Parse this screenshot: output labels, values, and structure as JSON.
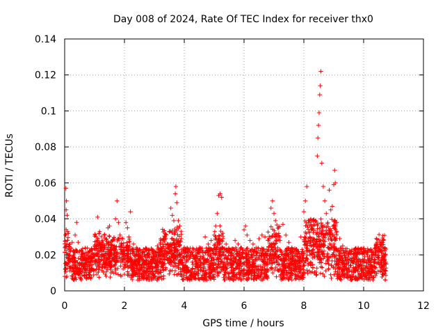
{
  "chart_data": {
    "type": "scatter",
    "title": "Day 008 of 2024, Rate Of TEC Index for receiver thx0",
    "xlabel": "GPS time / hours",
    "ylabel": "ROTI / TECUs",
    "xlim": [
      0,
      12
    ],
    "ylim": [
      0,
      0.14
    ],
    "x_ticks": [
      0,
      2,
      4,
      6,
      8,
      10,
      12
    ],
    "x_tick_labels": [
      "0",
      "2",
      "4",
      "6",
      "8",
      "10",
      "12"
    ],
    "y_ticks": [
      0,
      0.02,
      0.04,
      0.06,
      0.08,
      0.1,
      0.12,
      0.14
    ],
    "y_tick_labels": [
      "0",
      "0.02",
      "0.04",
      "0.06",
      "0.08",
      "0.1",
      "0.12",
      "0.14"
    ],
    "grid": true,
    "marker": "+",
    "marker_color": "#ff0000",
    "series": [
      {
        "name": "ROTI",
        "points": [
          [
            0.02,
            0.012
          ],
          [
            0.04,
            0.057
          ],
          [
            0.05,
            0.045
          ],
          [
            0.06,
            0.05
          ],
          [
            0.08,
            0.042
          ],
          [
            0.1,
            0.033
          ],
          [
            0.12,
            0.025
          ],
          [
            0.15,
            0.018
          ],
          [
            0.2,
            0.013
          ],
          [
            0.25,
            0.027
          ],
          [
            0.3,
            0.022
          ],
          [
            0.35,
            0.031
          ],
          [
            0.4,
            0.038
          ],
          [
            0.45,
            0.027
          ],
          [
            0.5,
            0.022
          ],
          [
            0.55,
            0.019
          ],
          [
            0.6,
            0.021
          ],
          [
            0.7,
            0.018
          ],
          [
            0.8,
            0.016
          ],
          [
            0.9,
            0.02
          ],
          [
            1.0,
            0.025
          ],
          [
            1.05,
            0.03
          ],
          [
            1.1,
            0.041
          ],
          [
            1.15,
            0.032
          ],
          [
            1.2,
            0.025
          ],
          [
            1.3,
            0.024
          ],
          [
            1.4,
            0.021
          ],
          [
            1.45,
            0.035
          ],
          [
            1.5,
            0.036
          ],
          [
            1.6,
            0.028
          ],
          [
            1.7,
            0.04
          ],
          [
            1.75,
            0.05
          ],
          [
            1.8,
            0.038
          ],
          [
            1.85,
            0.031
          ],
          [
            1.9,
            0.026
          ],
          [
            2.0,
            0.022
          ],
          [
            2.05,
            0.038
          ],
          [
            2.1,
            0.035
          ],
          [
            2.15,
            0.03
          ],
          [
            2.2,
            0.044
          ],
          [
            2.3,
            0.026
          ],
          [
            2.4,
            0.024
          ],
          [
            2.5,
            0.023
          ],
          [
            2.6,
            0.021
          ],
          [
            2.7,
            0.019
          ],
          [
            2.8,
            0.02
          ],
          [
            2.9,
            0.019
          ],
          [
            3.0,
            0.022
          ],
          [
            3.1,
            0.025
          ],
          [
            3.2,
            0.026
          ],
          [
            3.3,
            0.029
          ],
          [
            3.4,
            0.031
          ],
          [
            3.5,
            0.033
          ],
          [
            3.55,
            0.046
          ],
          [
            3.6,
            0.042
          ],
          [
            3.65,
            0.039
          ],
          [
            3.7,
            0.054
          ],
          [
            3.72,
            0.058
          ],
          [
            3.75,
            0.049
          ],
          [
            3.8,
            0.039
          ],
          [
            3.85,
            0.036
          ],
          [
            3.9,
            0.029
          ],
          [
            4.0,
            0.024
          ],
          [
            4.1,
            0.021
          ],
          [
            4.2,
            0.02
          ],
          [
            4.3,
            0.018
          ],
          [
            4.4,
            0.019
          ],
          [
            4.5,
            0.024
          ],
          [
            4.6,
            0.022
          ],
          [
            4.7,
            0.03
          ],
          [
            4.8,
            0.026
          ],
          [
            4.9,
            0.028
          ],
          [
            5.0,
            0.031
          ],
          [
            5.05,
            0.036
          ],
          [
            5.1,
            0.043
          ],
          [
            5.15,
            0.053
          ],
          [
            5.2,
            0.054
          ],
          [
            5.25,
            0.052
          ],
          [
            5.3,
            0.029
          ],
          [
            5.4,
            0.026
          ],
          [
            5.5,
            0.023
          ],
          [
            5.6,
            0.021
          ],
          [
            5.7,
            0.028
          ],
          [
            5.8,
            0.026
          ],
          [
            5.9,
            0.024
          ],
          [
            6.0,
            0.034
          ],
          [
            6.05,
            0.036
          ],
          [
            6.1,
            0.031
          ],
          [
            6.2,
            0.028
          ],
          [
            6.3,
            0.026
          ],
          [
            6.4,
            0.024
          ],
          [
            6.5,
            0.029
          ],
          [
            6.6,
            0.031
          ],
          [
            6.7,
            0.03
          ],
          [
            6.8,
            0.028
          ],
          [
            6.9,
            0.046
          ],
          [
            6.95,
            0.05
          ],
          [
            7.0,
            0.043
          ],
          [
            7.05,
            0.039
          ],
          [
            7.1,
            0.03
          ],
          [
            7.2,
            0.028
          ],
          [
            7.3,
            0.037
          ],
          [
            7.4,
            0.031
          ],
          [
            7.5,
            0.027
          ],
          [
            7.6,
            0.024
          ],
          [
            7.7,
            0.023
          ],
          [
            7.8,
            0.022
          ],
          [
            7.9,
            0.03
          ],
          [
            8.0,
            0.044
          ],
          [
            8.05,
            0.05
          ],
          [
            8.1,
            0.058
          ],
          [
            8.15,
            0.038
          ],
          [
            8.2,
            0.03
          ],
          [
            8.25,
            0.036
          ],
          [
            8.3,
            0.029
          ],
          [
            8.4,
            0.039
          ],
          [
            8.45,
            0.075
          ],
          [
            8.47,
            0.085
          ],
          [
            8.49,
            0.092
          ],
          [
            8.51,
            0.099
          ],
          [
            8.53,
            0.109
          ],
          [
            8.55,
            0.114
          ],
          [
            8.57,
            0.122
          ],
          [
            8.6,
            0.071
          ],
          [
            8.65,
            0.058
          ],
          [
            8.7,
            0.05
          ],
          [
            8.75,
            0.043
          ],
          [
            8.8,
            0.038
          ],
          [
            8.85,
            0.056
          ],
          [
            8.9,
            0.045
          ],
          [
            8.95,
            0.047
          ],
          [
            9.0,
            0.059
          ],
          [
            9.03,
            0.067
          ],
          [
            9.05,
            0.06
          ],
          [
            9.1,
            0.038
          ],
          [
            9.2,
            0.029
          ],
          [
            9.3,
            0.025
          ],
          [
            9.4,
            0.022
          ],
          [
            9.5,
            0.02
          ],
          [
            9.6,
            0.018
          ],
          [
            9.7,
            0.017
          ],
          [
            9.8,
            0.016
          ],
          [
            9.9,
            0.015
          ],
          [
            10.0,
            0.017
          ],
          [
            10.1,
            0.016
          ],
          [
            10.2,
            0.018
          ],
          [
            10.3,
            0.02
          ],
          [
            10.4,
            0.022
          ],
          [
            10.5,
            0.024
          ],
          [
            10.55,
            0.027
          ],
          [
            10.6,
            0.026
          ],
          [
            10.65,
            0.019
          ],
          [
            10.7,
            0.017
          ],
          [
            10.75,
            0.015
          ]
        ]
      }
    ]
  }
}
